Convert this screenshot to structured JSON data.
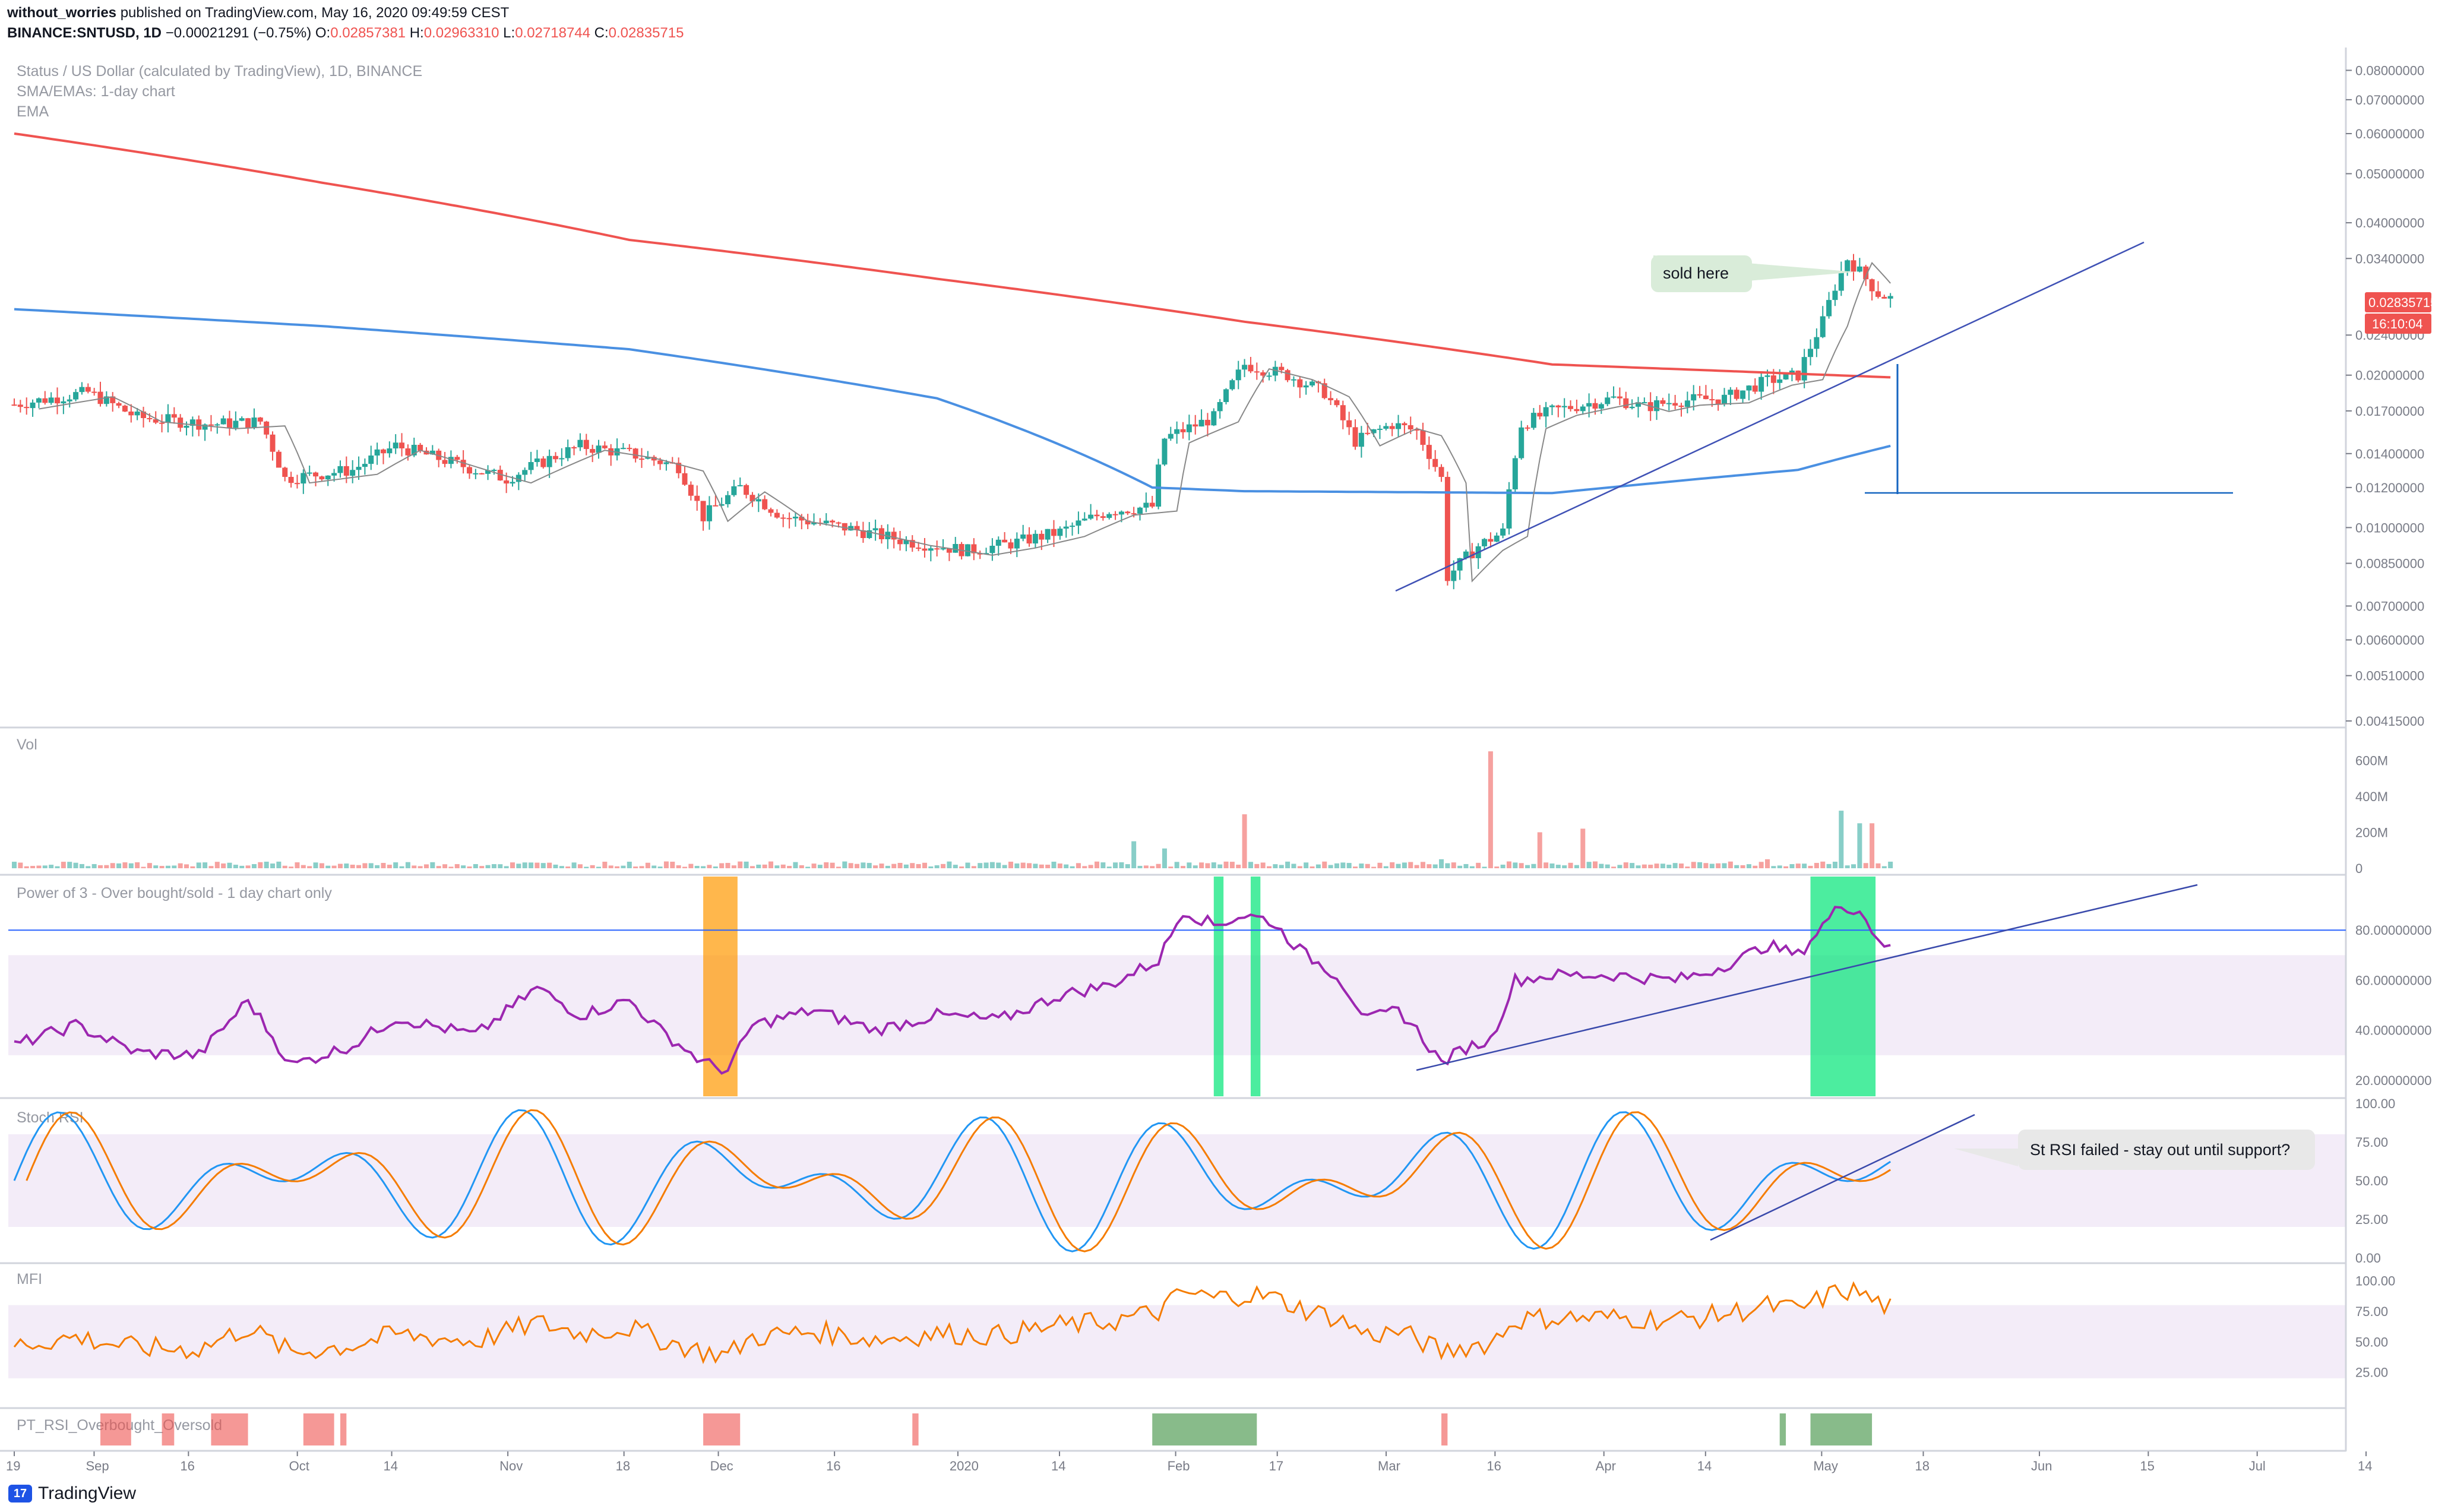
{
  "header": {
    "author": "without_worries",
    "published": "published on TradingView.com, May 16, 2020 09:49:59 CEST",
    "symbol": "BINANCE:SNTUSD, 1D",
    "change": "−0.00021291 (−0.75%)",
    "o_label": "O:",
    "o_value": "0.02857381",
    "h_label": "H:",
    "h_value": "0.02963310",
    "l_label": "L:",
    "l_value": "0.02718744",
    "c_label": "C:",
    "c_value": "0.02835715"
  },
  "legend": {
    "title": "Status / US Dollar (calculated by TradingView), 1D, BINANCE",
    "ma_line": "SMA/EMAs: 1-day chart",
    "ema_line": "EMA"
  },
  "colors": {
    "up": "#26a69a",
    "down": "#ef5350",
    "ema200": "#ef5350",
    "sma200": "#4a90e2",
    "rsi": "#9c27b0",
    "stoch_k": "#2196f3",
    "stoch_d": "#f57c00",
    "mfi": "#f57c00",
    "trend": "#3f51b5"
  },
  "panes": {
    "volume": "Vol",
    "power3": "Power of 3 - Over bought/sold - 1 day chart only",
    "stoch": "Stoch RSI",
    "mfi": "MFI",
    "pt_rsi": "PT_RSI_Overbought_Oversold"
  },
  "price_badges": {
    "last": "0.02835715",
    "countdown": "16:10:04"
  },
  "callouts": {
    "sold": "sold here",
    "stoch_failed": "St RSI failed - stay out until support?"
  },
  "footer": {
    "brand": "TradingView",
    "logo_mark": "17"
  },
  "chart_data": {
    "type": "candlestick",
    "title": "Status / US Dollar (calculated by TradingView), 1D, BINANCE",
    "price_axis": {
      "scale": "log",
      "ticks": [
        "0.08000000",
        "0.07000000",
        "0.06000000",
        "0.05000000",
        "0.04000000",
        "0.03400000",
        "0.02400000",
        "0.02000000",
        "0.01700000",
        "0.01400000",
        "0.01200000",
        "0.01000000",
        "0.00850000",
        "0.00700000",
        "0.00600000",
        "0.00510000",
        "0.00415000"
      ]
    },
    "time_axis": {
      "ticks": [
        "19",
        "Sep",
        "16",
        "Oct",
        "14",
        "Nov",
        "18",
        "Dec",
        "16",
        "2020",
        "14",
        "Feb",
        "17",
        "Mar",
        "16",
        "Apr",
        "14",
        "May",
        "18",
        "Jun",
        "15",
        "Jul",
        "14"
      ]
    },
    "price_path": [
      [
        0,
        0.0175
      ],
      [
        12,
        0.0185
      ],
      [
        20,
        0.0165
      ],
      [
        32,
        0.016
      ],
      [
        40,
        0.0162
      ],
      [
        44,
        0.0125
      ],
      [
        55,
        0.013
      ],
      [
        62,
        0.0145
      ],
      [
        75,
        0.013
      ],
      [
        80,
        0.0125
      ],
      [
        92,
        0.0145
      ],
      [
        100,
        0.014
      ],
      [
        108,
        0.0132
      ],
      [
        112,
        0.0105
      ],
      [
        118,
        0.012
      ],
      [
        125,
        0.0105
      ],
      [
        135,
        0.01
      ],
      [
        145,
        0.0094
      ],
      [
        155,
        0.009
      ],
      [
        162,
        0.0093
      ],
      [
        170,
        0.0098
      ],
      [
        178,
        0.0108
      ],
      [
        185,
        0.011
      ],
      [
        187,
        0.015
      ],
      [
        195,
        0.0165
      ],
      [
        200,
        0.021
      ],
      [
        207,
        0.02
      ],
      [
        213,
        0.0185
      ],
      [
        218,
        0.0148
      ],
      [
        224,
        0.016
      ],
      [
        228,
        0.0155
      ],
      [
        232,
        0.0125
      ],
      [
        233,
        0.008
      ],
      [
        238,
        0.0092
      ],
      [
        242,
        0.0098
      ],
      [
        245,
        0.016
      ],
      [
        250,
        0.017
      ],
      [
        255,
        0.0175
      ],
      [
        260,
        0.018
      ],
      [
        265,
        0.0173
      ],
      [
        270,
        0.0178
      ],
      [
        278,
        0.018
      ],
      [
        285,
        0.0195
      ],
      [
        290,
        0.02
      ],
      [
        294,
        0.0255
      ],
      [
        296,
        0.03
      ],
      [
        298,
        0.034
      ],
      [
        300,
        0.032
      ],
      [
        303,
        0.029
      ],
      [
        305,
        0.02836
      ]
    ],
    "ema200": [
      [
        0,
        0.06
      ],
      [
        50,
        0.048
      ],
      [
        100,
        0.037
      ],
      [
        150,
        0.031
      ],
      [
        200,
        0.0255
      ],
      [
        250,
        0.021
      ],
      [
        305,
        0.0198
      ]
    ],
    "sma200": [
      [
        0,
        0.027
      ],
      [
        50,
        0.025
      ],
      [
        100,
        0.0225
      ],
      [
        150,
        0.018
      ],
      [
        185,
        0.012
      ],
      [
        200,
        0.0118
      ],
      [
        250,
        0.0117
      ],
      [
        290,
        0.013
      ],
      [
        305,
        0.0145
      ]
    ],
    "annotations": [
      "sold here",
      "St RSI failed - stay out until support?"
    ],
    "volume": {
      "axis_ticks": [
        "600M",
        "400M",
        "200M",
        "0"
      ],
      "spikes": [
        [
          182,
          150
        ],
        [
          187,
          110
        ],
        [
          200,
          300
        ],
        [
          232,
          50
        ],
        [
          240,
          650
        ],
        [
          248,
          200
        ],
        [
          255,
          220
        ],
        [
          285,
          50
        ],
        [
          297,
          320
        ],
        [
          300,
          250
        ],
        [
          302,
          250
        ]
      ]
    },
    "power_of_3": {
      "axis_ticks": [
        "80.00000000",
        "60.00000000",
        "40.00000000",
        "20.00000000"
      ],
      "overbought_line": 80,
      "band": [
        30,
        70
      ],
      "series": [
        [
          0,
          34
        ],
        [
          10,
          42
        ],
        [
          20,
          31
        ],
        [
          30,
          30
        ],
        [
          38,
          52
        ],
        [
          45,
          26
        ],
        [
          55,
          34
        ],
        [
          62,
          45
        ],
        [
          75,
          38
        ],
        [
          85,
          57
        ],
        [
          92,
          46
        ],
        [
          100,
          52
        ],
        [
          105,
          40
        ],
        [
          112,
          27
        ],
        [
          116,
          24
        ],
        [
          120,
          42
        ],
        [
          130,
          48
        ],
        [
          140,
          40
        ],
        [
          150,
          46
        ],
        [
          160,
          44
        ],
        [
          170,
          54
        ],
        [
          178,
          58
        ],
        [
          186,
          68
        ],
        [
          190,
          88
        ],
        [
          195,
          82
        ],
        [
          200,
          86
        ],
        [
          204,
          84
        ],
        [
          210,
          70
        ],
        [
          215,
          62
        ],
        [
          220,
          44
        ],
        [
          225,
          48
        ],
        [
          228,
          40
        ],
        [
          232,
          27
        ],
        [
          236,
          33
        ],
        [
          240,
          36
        ],
        [
          244,
          60
        ],
        [
          250,
          62
        ],
        [
          260,
          62
        ],
        [
          270,
          60
        ],
        [
          275,
          63
        ],
        [
          280,
          68
        ],
        [
          285,
          74
        ],
        [
          290,
          70
        ],
        [
          294,
          82
        ],
        [
          297,
          90
        ],
        [
          300,
          88
        ],
        [
          302,
          80
        ],
        [
          305,
          72
        ]
      ],
      "highlights": [
        {
          "from": 112,
          "to": 117,
          "color": "#ff9800"
        },
        {
          "from": 195,
          "to": 196,
          "color": "#00e676"
        },
        {
          "from": 201,
          "to": 202,
          "color": "#00e676"
        },
        {
          "from": 292,
          "to": 302,
          "color": "#00e676"
        }
      ]
    },
    "stoch_rsi": {
      "axis_ticks": [
        "100.00",
        "75.00",
        "50.00",
        "25.00",
        "0.00"
      ],
      "band": [
        20,
        80
      ]
    },
    "mfi": {
      "axis_ticks": [
        "100.00",
        "75.00",
        "50.00",
        "25.00"
      ],
      "band": [
        20,
        80
      ]
    }
  }
}
